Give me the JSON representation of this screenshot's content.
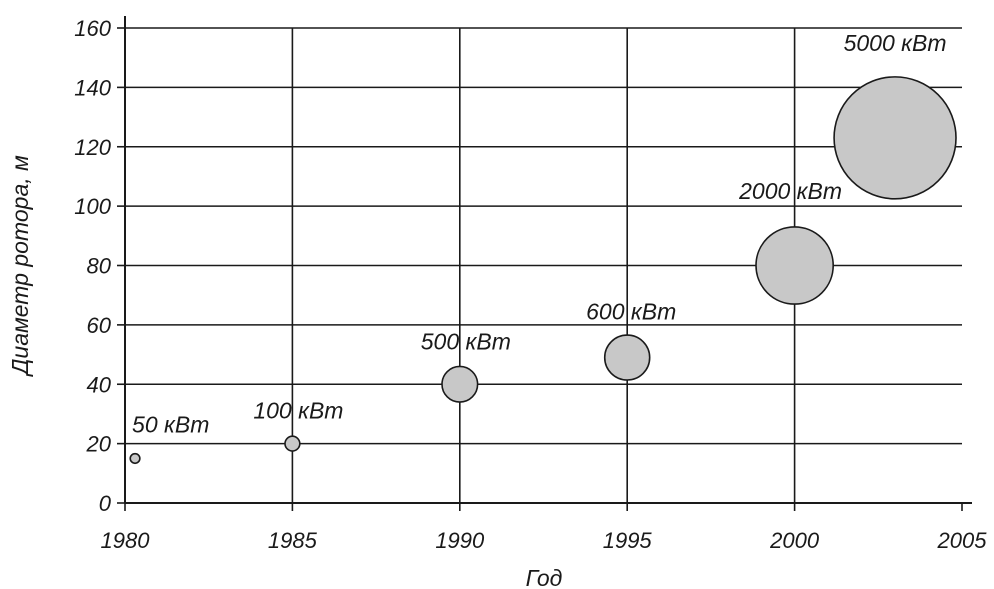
{
  "chart_data": {
    "type": "scatter",
    "title": "",
    "xlabel": "Год",
    "ylabel": "Диаметр ротора, м",
    "xlim": [
      1980,
      2005
    ],
    "ylim": [
      0,
      160
    ],
    "xticks": [
      1980,
      1985,
      1990,
      1995,
      2000,
      2005
    ],
    "yticks": [
      0,
      20,
      40,
      60,
      80,
      100,
      120,
      140,
      160
    ],
    "grid": true,
    "legend": "none",
    "marker_color": "#c8c8c8",
    "marker_edge_color": "#1a1a1a",
    "points": [
      {
        "x": 1980.3,
        "y": 15,
        "label": "50 кВт"
      },
      {
        "x": 1985,
        "y": 20,
        "label": "100 кВт"
      },
      {
        "x": 1990,
        "y": 40,
        "label": "500 кВт"
      },
      {
        "x": 1995,
        "y": 49,
        "label": "600 кВт"
      },
      {
        "x": 2000,
        "y": 80,
        "label": "2000 кВт"
      },
      {
        "x": 2003,
        "y": 123,
        "label": "5000 кВт"
      }
    ]
  }
}
